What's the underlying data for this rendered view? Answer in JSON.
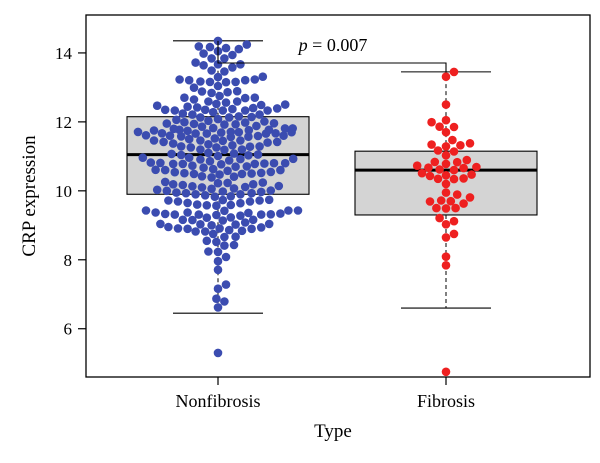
{
  "chart_data": {
    "type": "box-beeswarm",
    "xlabel": "Type",
    "ylabel": "CRP expression",
    "categories": [
      "Nonfibrosis",
      "Fibrosis"
    ],
    "yticks": [
      "6",
      "8",
      "10",
      "12",
      "14"
    ],
    "ylim": [
      4.6,
      15.1
    ],
    "annotation": {
      "p_italic": "p",
      "p_rest": " = 0.007"
    },
    "boxes": [
      {
        "category": "Nonfibrosis",
        "whisker_low": 6.45,
        "q1": 9.9,
        "median": 11.05,
        "q3": 12.15,
        "whisker_high": 14.35
      },
      {
        "category": "Fibrosis",
        "whisker_low": 6.6,
        "q1": 9.3,
        "median": 10.6,
        "q3": 11.15,
        "whisker_high": 13.45
      }
    ],
    "points": [
      {
        "category": "Nonfibrosis",
        "color": "#3b4cb0",
        "n": 260,
        "min": 5.3,
        "max": 14.35
      },
      {
        "category": "Fibrosis",
        "color": "#ee2020",
        "n": 52,
        "min": 4.75,
        "max": 13.45
      }
    ],
    "box_fill": "#d4d4d4",
    "grid": false,
    "legend": "none"
  }
}
